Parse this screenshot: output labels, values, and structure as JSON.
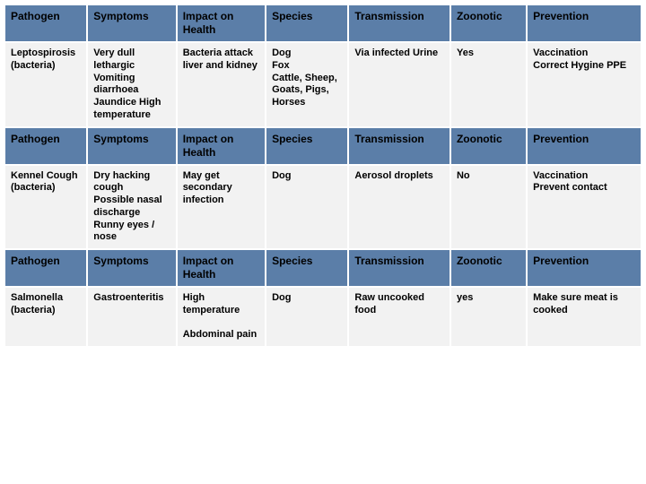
{
  "columns": [
    "Pathogen",
    "Symptoms",
    "Impact on Health",
    "Species",
    "Transmission",
    "Zoonotic",
    "Prevention"
  ],
  "sections": [
    {
      "pathogen": "Leptospirosis (bacteria)",
      "symptoms": "Very dull lethargic Vomiting diarrhoea Jaundice High temperature",
      "impact": "Bacteria attack liver and kidney",
      "species": "Dog\nFox\nCattle, Sheep, Goats, Pigs, Horses",
      "transmission": "Via infected Urine",
      "zoonotic": "Yes",
      "prevention": "Vaccination\nCorrect Hygine PPE"
    },
    {
      "pathogen": "Kennel Cough (bacteria)",
      "symptoms": "Dry hacking cough\nPossible nasal discharge\nRunny eyes / nose",
      "impact": "May get secondary infection",
      "species": "Dog",
      "transmission": "Aerosol droplets",
      "zoonotic": "No",
      "prevention": "Vaccination\nPrevent contact"
    },
    {
      "pathogen": "Salmonella (bacteria)",
      "symptoms": "Gastroenteritis",
      "impact": "High temperature\n\nAbdominal pain",
      "species": "Dog",
      "transmission": "Raw uncooked food",
      "zoonotic": "yes",
      "prevention": "Make sure meat is cooked"
    }
  ],
  "style": {
    "header_bg": "#5b7ea8",
    "cell_bg": "#f2f2f2",
    "border_color": "#ffffff",
    "header_fontsize": 12,
    "cell_fontsize": 11,
    "col_widths_pct": [
      13,
      14,
      14,
      13,
      16,
      12,
      18
    ]
  }
}
